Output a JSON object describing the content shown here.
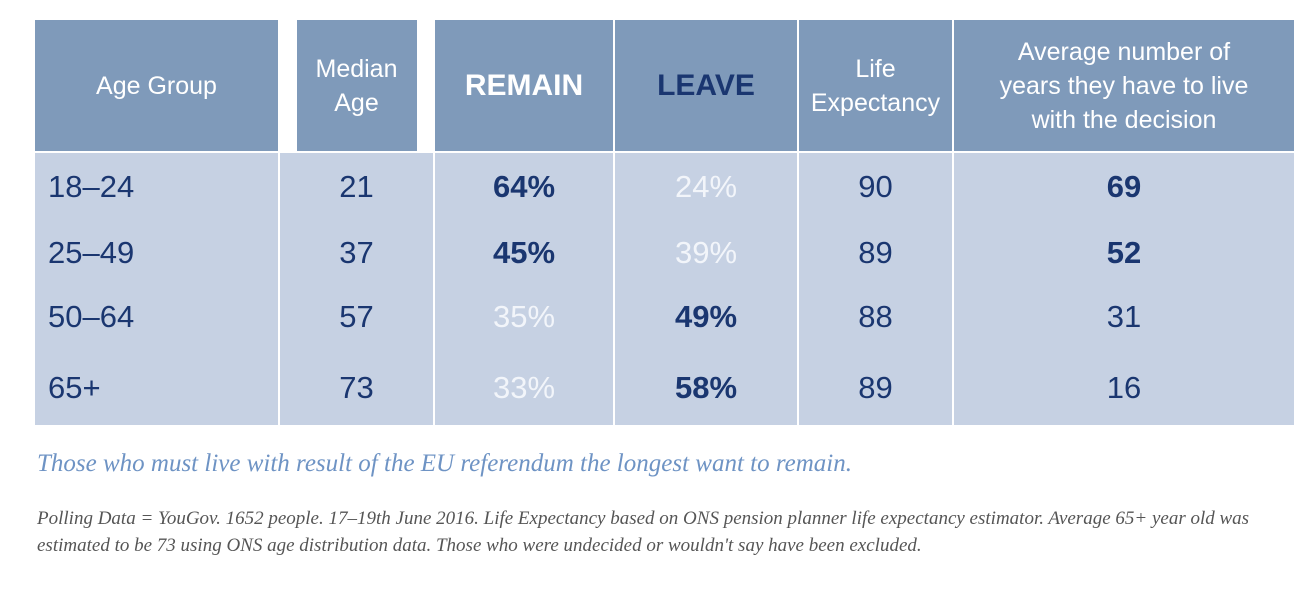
{
  "chart_data": {
    "type": "table",
    "columns": [
      "Age Group",
      "Median Age",
      "REMAIN",
      "LEAVE",
      "Life Expectancy",
      "Average number of years they have to live with the decision"
    ],
    "rows": [
      {
        "age_group": "18–24",
        "median_age": "21",
        "remain": "64%",
        "leave": "24%",
        "life_expectancy": "90",
        "years_to_live": "69"
      },
      {
        "age_group": "25–49",
        "median_age": "37",
        "remain": "45%",
        "leave": "39%",
        "life_expectancy": "89",
        "years_to_live": "52"
      },
      {
        "age_group": "50–64",
        "median_age": "57",
        "remain": "35%",
        "leave": "49%",
        "life_expectancy": "88",
        "years_to_live": "31"
      },
      {
        "age_group": "65+",
        "median_age": "73",
        "remain": "33%",
        "leave": "58%",
        "life_expectancy": "89",
        "years_to_live": "16"
      }
    ]
  },
  "caption": "Those who must live with result of the EU referendum the longest want to remain.",
  "footnote": "Polling Data = YouGov. 1652 people. 17–19th June 2016. Life Expectancy based on ONS pension planner life expectancy estimator. Average 65+ year old was estimated to be 73 using ONS age distribution data. Those who were undecided or wouldn't say have been excluded.",
  "colors": {
    "header_bg": "#7f9aba",
    "body_bg": "#c6d1e3",
    "navy": "#1a3670",
    "caption": "#6e93c4"
  }
}
